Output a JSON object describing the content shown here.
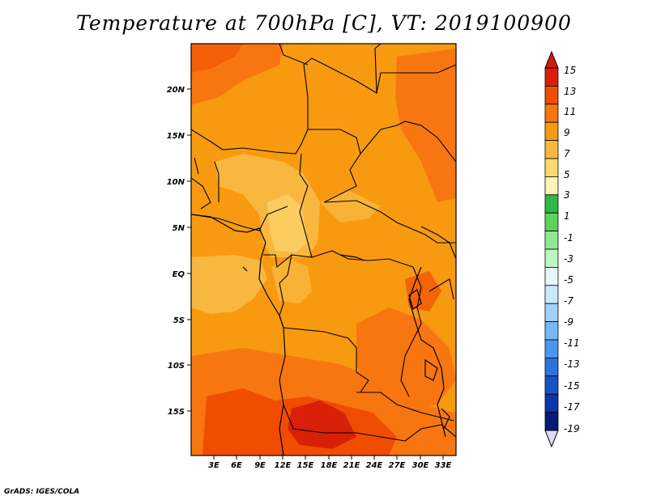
{
  "title": "Temperature at 700hPa [C], VT: 2019100900",
  "credit": "GrADS: IGES/COLA",
  "map": {
    "lat_labels": [
      "20N",
      "15N",
      "10N",
      "5N",
      "EQ",
      "5S",
      "10S",
      "15S"
    ],
    "lon_labels": [
      "3E",
      "6E",
      "9E",
      "12E",
      "15E",
      "18E",
      "21E",
      "24E",
      "27E",
      "30E",
      "33E"
    ]
  },
  "colorbar": {
    "labels": [
      "15",
      "13",
      "11",
      "9",
      "7",
      "5",
      "3",
      "1",
      "-1",
      "-3",
      "-5",
      "-7",
      "-9",
      "-11",
      "-13",
      "-15",
      "-17",
      "-19"
    ],
    "colors": [
      "#d82008",
      "#f04d00",
      "#f87610",
      "#f89a10",
      "#f8b840",
      "#fbd96e",
      "#fdf2b8",
      "#2eb84a",
      "#5cd45c",
      "#90e890",
      "#c0f4c0",
      "#e4f8f8",
      "#c8e8fc",
      "#a2d2fa",
      "#78b8f4",
      "#4a98ee",
      "#2a74dc",
      "#1654c8",
      "#0c36a8",
      "#061a78"
    ],
    "top_arrow_color": "#d01c08",
    "bottom_arrow_color": "#dcdcf4"
  }
}
